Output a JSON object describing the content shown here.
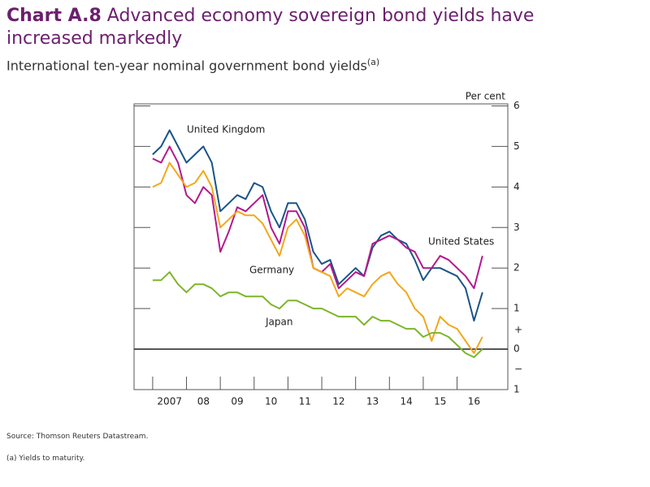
{
  "chart_data": {
    "type": "line",
    "title_label": "Chart A.8",
    "title": "Advanced economy sovereign bond yields have increased markedly",
    "subtitle": "International ten-year nominal government bond yields",
    "subtitle_note": "(a)",
    "y_axis_label": "Per cent",
    "sign_labels": {
      "plus": "+",
      "minus": "−"
    },
    "source": "Source: Thomson Reuters Datastream.",
    "footnote": "(a)  Yields to maturity.",
    "x": [
      2007,
      2007.25,
      2007.5,
      2007.75,
      2008,
      2008.25,
      2008.5,
      2008.75,
      2009,
      2009.25,
      2009.5,
      2009.75,
      2010,
      2010.25,
      2010.5,
      2010.75,
      2011,
      2011.25,
      2011.5,
      2011.75,
      2012,
      2012.25,
      2012.5,
      2012.75,
      2013,
      2013.25,
      2013.5,
      2013.75,
      2014,
      2014.25,
      2014.5,
      2014.75,
      2015,
      2015.25,
      2015.5,
      2015.75,
      2016,
      2016.25,
      2016.5,
      2016.75
    ],
    "series": [
      {
        "name": "United Kingdom",
        "color": "#1a5488",
        "values": [
          4.8,
          5.0,
          5.4,
          5.0,
          4.6,
          4.8,
          5.0,
          4.6,
          3.4,
          3.6,
          3.8,
          3.7,
          4.1,
          4.0,
          3.4,
          3.0,
          3.6,
          3.6,
          3.2,
          2.4,
          2.1,
          2.2,
          1.6,
          1.8,
          2.0,
          1.8,
          2.5,
          2.8,
          2.9,
          2.7,
          2.6,
          2.2,
          1.7,
          2.0,
          2.0,
          1.9,
          1.8,
          1.5,
          0.7,
          1.4
        ]
      },
      {
        "name": "United States",
        "color": "#b3188b",
        "values": [
          4.7,
          4.6,
          5.0,
          4.6,
          3.8,
          3.6,
          4.0,
          3.8,
          2.4,
          2.9,
          3.5,
          3.4,
          3.6,
          3.8,
          3.0,
          2.6,
          3.4,
          3.4,
          3.0,
          2.0,
          1.9,
          2.1,
          1.5,
          1.7,
          1.9,
          1.8,
          2.6,
          2.7,
          2.8,
          2.7,
          2.5,
          2.4,
          2.0,
          2.0,
          2.3,
          2.2,
          2.0,
          1.8,
          1.5,
          2.3
        ]
      },
      {
        "name": "Germany",
        "color": "#f2a71b",
        "values": [
          4.0,
          4.1,
          4.6,
          4.3,
          4.0,
          4.1,
          4.4,
          4.0,
          3.0,
          3.2,
          3.4,
          3.3,
          3.3,
          3.1,
          2.7,
          2.3,
          3.0,
          3.2,
          2.8,
          2.0,
          1.9,
          1.8,
          1.3,
          1.5,
          1.4,
          1.3,
          1.6,
          1.8,
          1.9,
          1.6,
          1.4,
          1.0,
          0.8,
          0.2,
          0.8,
          0.6,
          0.5,
          0.2,
          -0.1,
          0.3
        ]
      },
      {
        "name": "Japan",
        "color": "#7cb52b",
        "values": [
          1.7,
          1.7,
          1.9,
          1.6,
          1.4,
          1.6,
          1.6,
          1.5,
          1.3,
          1.4,
          1.4,
          1.3,
          1.3,
          1.3,
          1.1,
          1.0,
          1.2,
          1.2,
          1.1,
          1.0,
          1.0,
          0.9,
          0.8,
          0.8,
          0.8,
          0.6,
          0.8,
          0.7,
          0.7,
          0.6,
          0.5,
          0.5,
          0.3,
          0.4,
          0.4,
          0.3,
          0.1,
          -0.1,
          -0.2,
          0.0
        ]
      }
    ],
    "xlim": [
      2006.45,
      2017.5
    ],
    "xticks": [
      2007,
      {
        "value": 2008,
        "label": "08"
      },
      {
        "value": 2009,
        "label": "09"
      },
      {
        "value": 2010,
        "label": "10"
      },
      {
        "value": 2011,
        "label": "11"
      },
      {
        "value": 2012,
        "label": "12"
      },
      {
        "value": 2013,
        "label": "13"
      },
      {
        "value": 2014,
        "label": "14"
      },
      {
        "value": 2015,
        "label": "15"
      },
      {
        "value": 2016,
        "label": "16"
      }
    ],
    "ylim": [
      -1,
      6.05
    ],
    "yticks": [
      {
        "value": -1,
        "label": "1"
      },
      0,
      1,
      2,
      3,
      4,
      5,
      6
    ]
  }
}
